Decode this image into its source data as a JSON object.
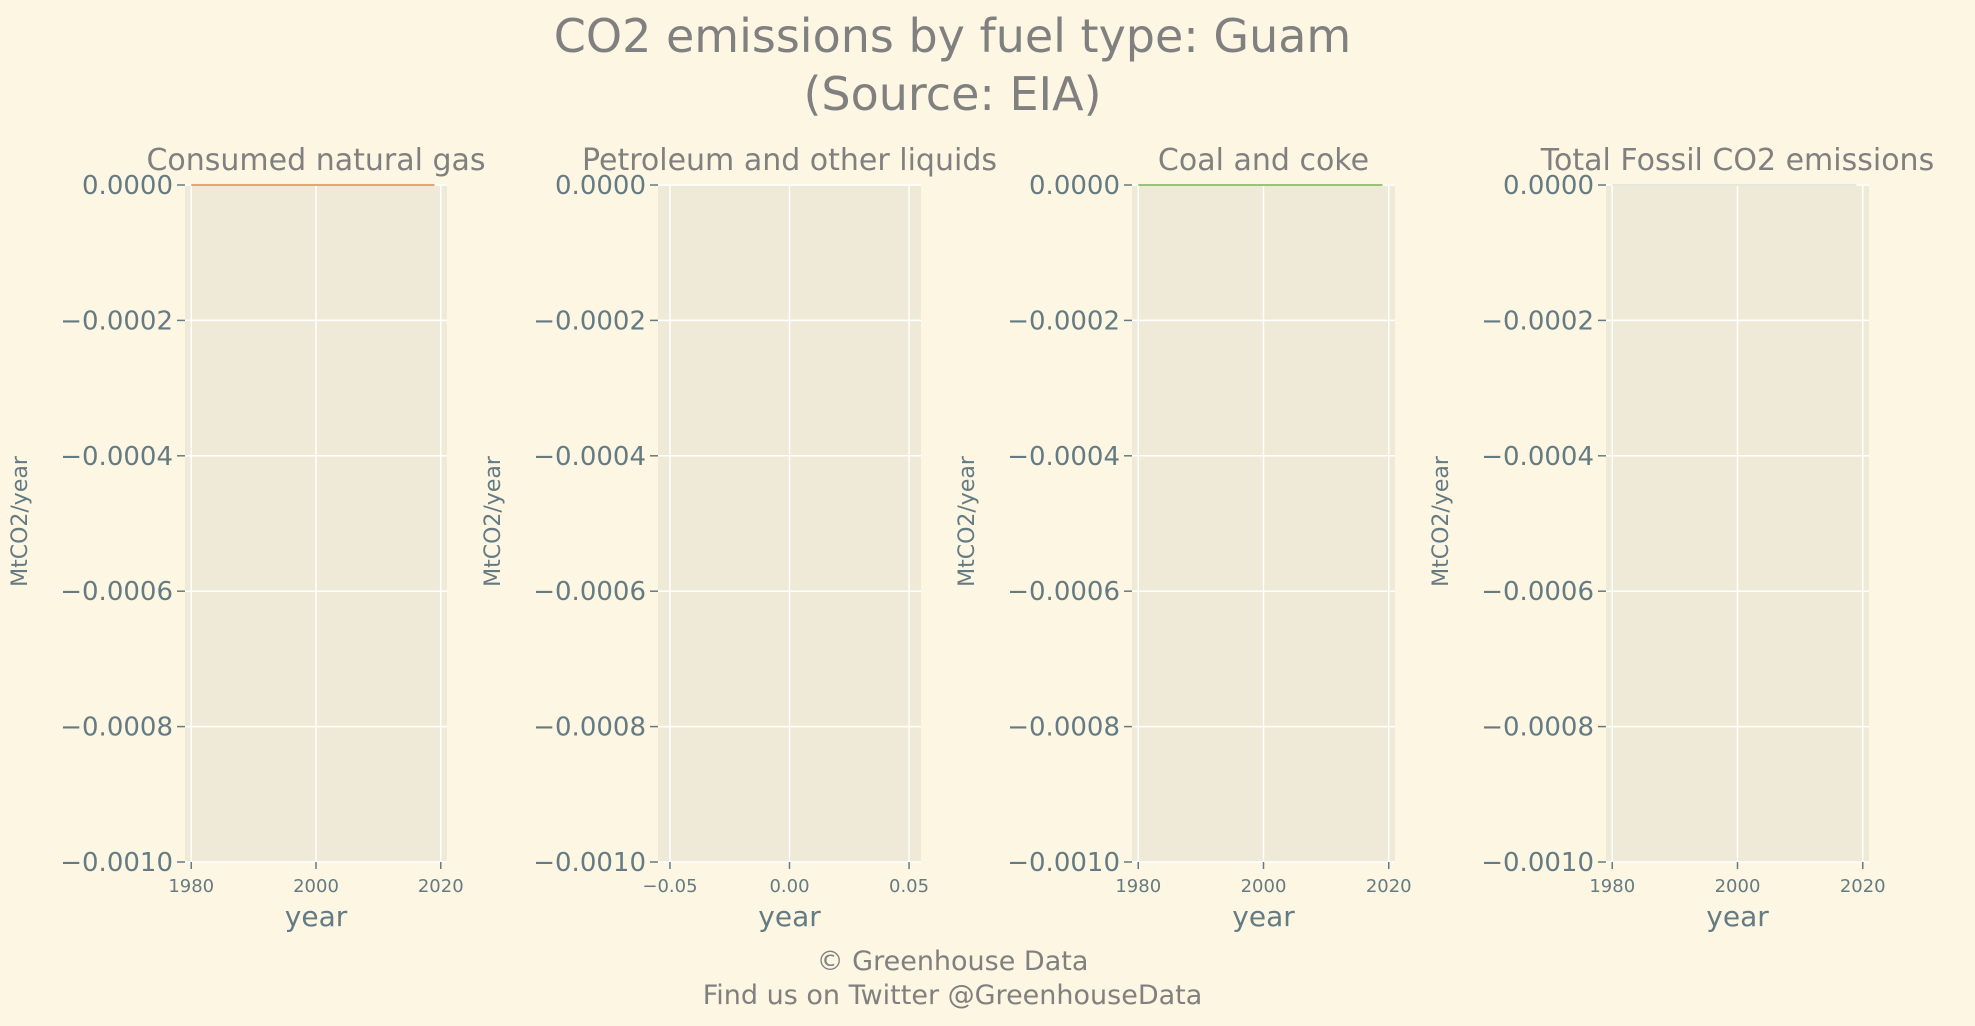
{
  "figure": {
    "title_line1": "CO2 emissions by fuel type: Guam",
    "title_line2": "(Source: EIA)",
    "footer_line1": "© Greenhouse Data",
    "footer_line2": "Find us on Twitter @GreenhouseData"
  },
  "colors": {
    "background": "#fdf6e3",
    "plot_area": "#efe9d7",
    "grid": "#ffffff",
    "text": "#657b83",
    "title_text": "#808080",
    "natural_gas_line": "#e8a27a",
    "coal_line": "#9bc27a",
    "total_line": "#e6e8dc"
  },
  "chart_data": [
    {
      "type": "line",
      "title": "Consumed natural gas",
      "xlabel": "year",
      "ylabel": "MtCO2/year",
      "xlim": [
        1979,
        2021
      ],
      "ylim": [
        -0.001,
        0
      ],
      "x_ticks": [
        1980,
        2000,
        2020
      ],
      "x_tick_labels": [
        "1980",
        "2000",
        "2020"
      ],
      "y_ticks": [
        0,
        -0.0002,
        -0.0004,
        -0.0006,
        -0.0008,
        -0.001
      ],
      "y_tick_labels": [
        "0.0000",
        "−0.0002",
        "−0.0004",
        "−0.0006",
        "−0.0008",
        "−0.0010"
      ],
      "grid": true,
      "series": [
        {
          "x": [
            1980,
            2019
          ],
          "y": [
            0,
            0
          ],
          "color": "#e8a27a"
        }
      ]
    },
    {
      "type": "line",
      "title": "Petroleum and other liquids",
      "xlabel": "year",
      "ylabel": "MtCO2/year",
      "xlim": [
        -0.055,
        0.055
      ],
      "ylim": [
        -0.001,
        0
      ],
      "x_ticks": [
        -0.05,
        0,
        0.05
      ],
      "x_tick_labels": [
        "−0.05",
        "0.00",
        "0.05"
      ],
      "y_ticks": [
        0,
        -0.0002,
        -0.0004,
        -0.0006,
        -0.0008,
        -0.001
      ],
      "y_tick_labels": [
        "0.0000",
        "−0.0002",
        "−0.0004",
        "−0.0006",
        "−0.0008",
        "−0.0010"
      ],
      "grid": true,
      "series": []
    },
    {
      "type": "line",
      "title": "Coal and coke",
      "xlabel": "year",
      "ylabel": "MtCO2/year",
      "xlim": [
        1979,
        2021
      ],
      "ylim": [
        -0.001,
        0
      ],
      "x_ticks": [
        1980,
        2000,
        2020
      ],
      "x_tick_labels": [
        "1980",
        "2000",
        "2020"
      ],
      "y_ticks": [
        0,
        -0.0002,
        -0.0004,
        -0.0006,
        -0.0008,
        -0.001
      ],
      "y_tick_labels": [
        "0.0000",
        "−0.0002",
        "−0.0004",
        "−0.0006",
        "−0.0008",
        "−0.0010"
      ],
      "grid": true,
      "series": [
        {
          "x": [
            1980,
            2019
          ],
          "y": [
            0,
            0
          ],
          "color": "#9bc27a"
        }
      ]
    },
    {
      "type": "line",
      "title": "Total Fossil CO2 emissions",
      "xlabel": "year",
      "ylabel": "MtCO2/year",
      "xlim": [
        1979,
        2021
      ],
      "ylim": [
        -0.001,
        0
      ],
      "x_ticks": [
        1980,
        2000,
        2020
      ],
      "x_tick_labels": [
        "1980",
        "2000",
        "2020"
      ],
      "y_ticks": [
        0,
        -0.0002,
        -0.0004,
        -0.0006,
        -0.0008,
        -0.001
      ],
      "y_tick_labels": [
        "0.0000",
        "−0.0002",
        "−0.0004",
        "−0.0006",
        "−0.0008",
        "−0.0010"
      ],
      "grid": true,
      "series": [
        {
          "x": [
            1980,
            2019
          ],
          "y": [
            0,
            0
          ],
          "color": "#e6e8dc"
        }
      ]
    }
  ]
}
